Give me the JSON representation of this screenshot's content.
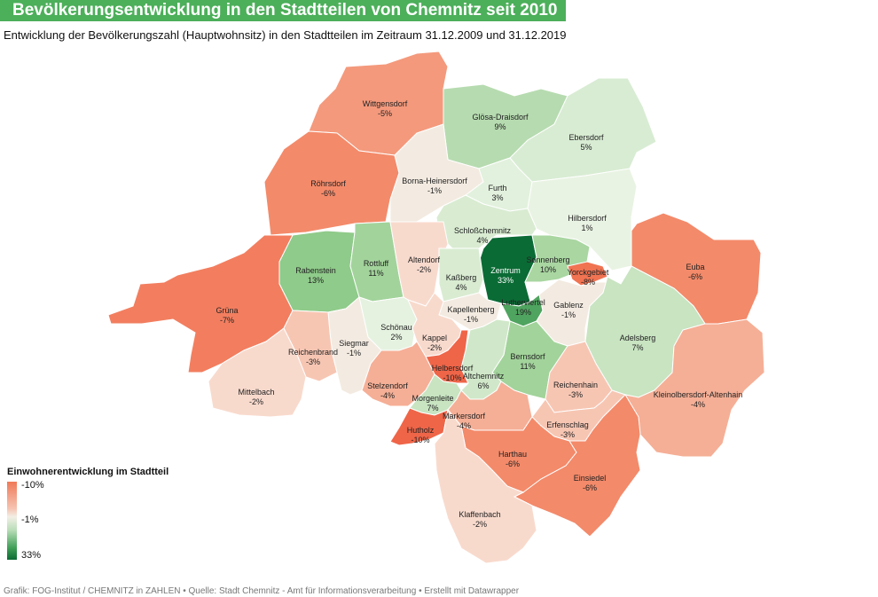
{
  "header": {
    "title": "Bevölkerungsentwicklung in den Stadtteilen von Chemnitz seit 2010",
    "subtitle": "Entwicklung der Bevölkerungszahl (Hauptwohnsitz) in den Stadtteilen im Zeitraum 31.12.2009 und 31.12.2019"
  },
  "legend": {
    "title": "Einwohnerentwicklung im Stadtteil",
    "min_label": "-10%",
    "mid_label": "-1%",
    "max_label": "33%"
  },
  "footer": "Grafik: FOG-Institut / CHEMNITZ in ZAHLEN • Quelle: Stadt Chemnitz - Amt für Informationsverarbeitung • Erstellt mit Datawrapper",
  "districts": [
    {
      "name": "Wittgensdorf",
      "value": "-5%",
      "color": "#f4997c"
    },
    {
      "name": "Glösa-Draisdorf",
      "value": "9%",
      "color": "#b6dbb0"
    },
    {
      "name": "Ebersdorf",
      "value": "5%",
      "color": "#d8ecd3"
    },
    {
      "name": "Röhrsdorf",
      "value": "-6%",
      "color": "#f38a6a"
    },
    {
      "name": "Borna-Heinersdorf",
      "value": "-1%",
      "color": "#f3ebe1"
    },
    {
      "name": "Furth",
      "value": "3%",
      "color": "#e2f1dd"
    },
    {
      "name": "Hilbersdorf",
      "value": "1%",
      "color": "#e9f3e3"
    },
    {
      "name": "Schloßchemnitz",
      "value": "4%",
      "color": "#d9ecd2"
    },
    {
      "name": "Rabenstein",
      "value": "13%",
      "color": "#8fcb8a"
    },
    {
      "name": "Rottluff",
      "value": "11%",
      "color": "#a2d39b"
    },
    {
      "name": "Altendorf",
      "value": "-2%",
      "color": "#f8dacd"
    },
    {
      "name": "Zentrum",
      "value": "33%",
      "color": "#0b6b35"
    },
    {
      "name": "Sonnenberg",
      "value": "10%",
      "color": "#a9d6a1"
    },
    {
      "name": "Yorckgebiet",
      "value": "-8%",
      "color": "#f07352"
    },
    {
      "name": "Euba",
      "value": "-6%",
      "color": "#f38a6a"
    },
    {
      "name": "Kaßberg",
      "value": "4%",
      "color": "#d9ecd2"
    },
    {
      "name": "Grüna",
      "value": "-7%",
      "color": "#f27e5f"
    },
    {
      "name": "Kapellenberg",
      "value": "-1%",
      "color": "#f3ebe1"
    },
    {
      "name": "Lutherviertel",
      "value": "19%",
      "color": "#4fa45f"
    },
    {
      "name": "Gablenz",
      "value": "-1%",
      "color": "#f3ebe1"
    },
    {
      "name": "Schönau",
      "value": "2%",
      "color": "#e5f2e0"
    },
    {
      "name": "Siegmar",
      "value": "-1%",
      "color": "#f3ebe1"
    },
    {
      "name": "Kappel",
      "value": "-2%",
      "color": "#f8dacd"
    },
    {
      "name": "Reichenbrand",
      "value": "-3%",
      "color": "#f7c6b3"
    },
    {
      "name": "Adelsberg",
      "value": "7%",
      "color": "#c8e4c1"
    },
    {
      "name": "Bernsdorf",
      "value": "11%",
      "color": "#a2d39b"
    },
    {
      "name": "Helbersdorf",
      "value": "-10%",
      "color": "#ef6548"
    },
    {
      "name": "Altchemnitz",
      "value": "6%",
      "color": "#d0e8c9"
    },
    {
      "name": "Reichenhain",
      "value": "-3%",
      "color": "#f7c6b3"
    },
    {
      "name": "Mittelbach",
      "value": "-2%",
      "color": "#f8dacd"
    },
    {
      "name": "Stelzendorf",
      "value": "-4%",
      "color": "#f5af96"
    },
    {
      "name": "Kleinolbersdorf-Altenhain",
      "value": "-4%",
      "color": "#f5af96"
    },
    {
      "name": "Morgenleite",
      "value": "7%",
      "color": "#c8e4c1"
    },
    {
      "name": "Markersdorf",
      "value": "-4%",
      "color": "#f5af96"
    },
    {
      "name": "Erfenschlag",
      "value": "-3%",
      "color": "#f7c6b3"
    },
    {
      "name": "Hutholz",
      "value": "-10%",
      "color": "#ef6548"
    },
    {
      "name": "Harthau",
      "value": "-6%",
      "color": "#f38a6a"
    },
    {
      "name": "Einsiedel",
      "value": "-6%",
      "color": "#f38a6a"
    },
    {
      "name": "Klaffenbach",
      "value": "-2%",
      "color": "#f8dacd"
    }
  ]
}
